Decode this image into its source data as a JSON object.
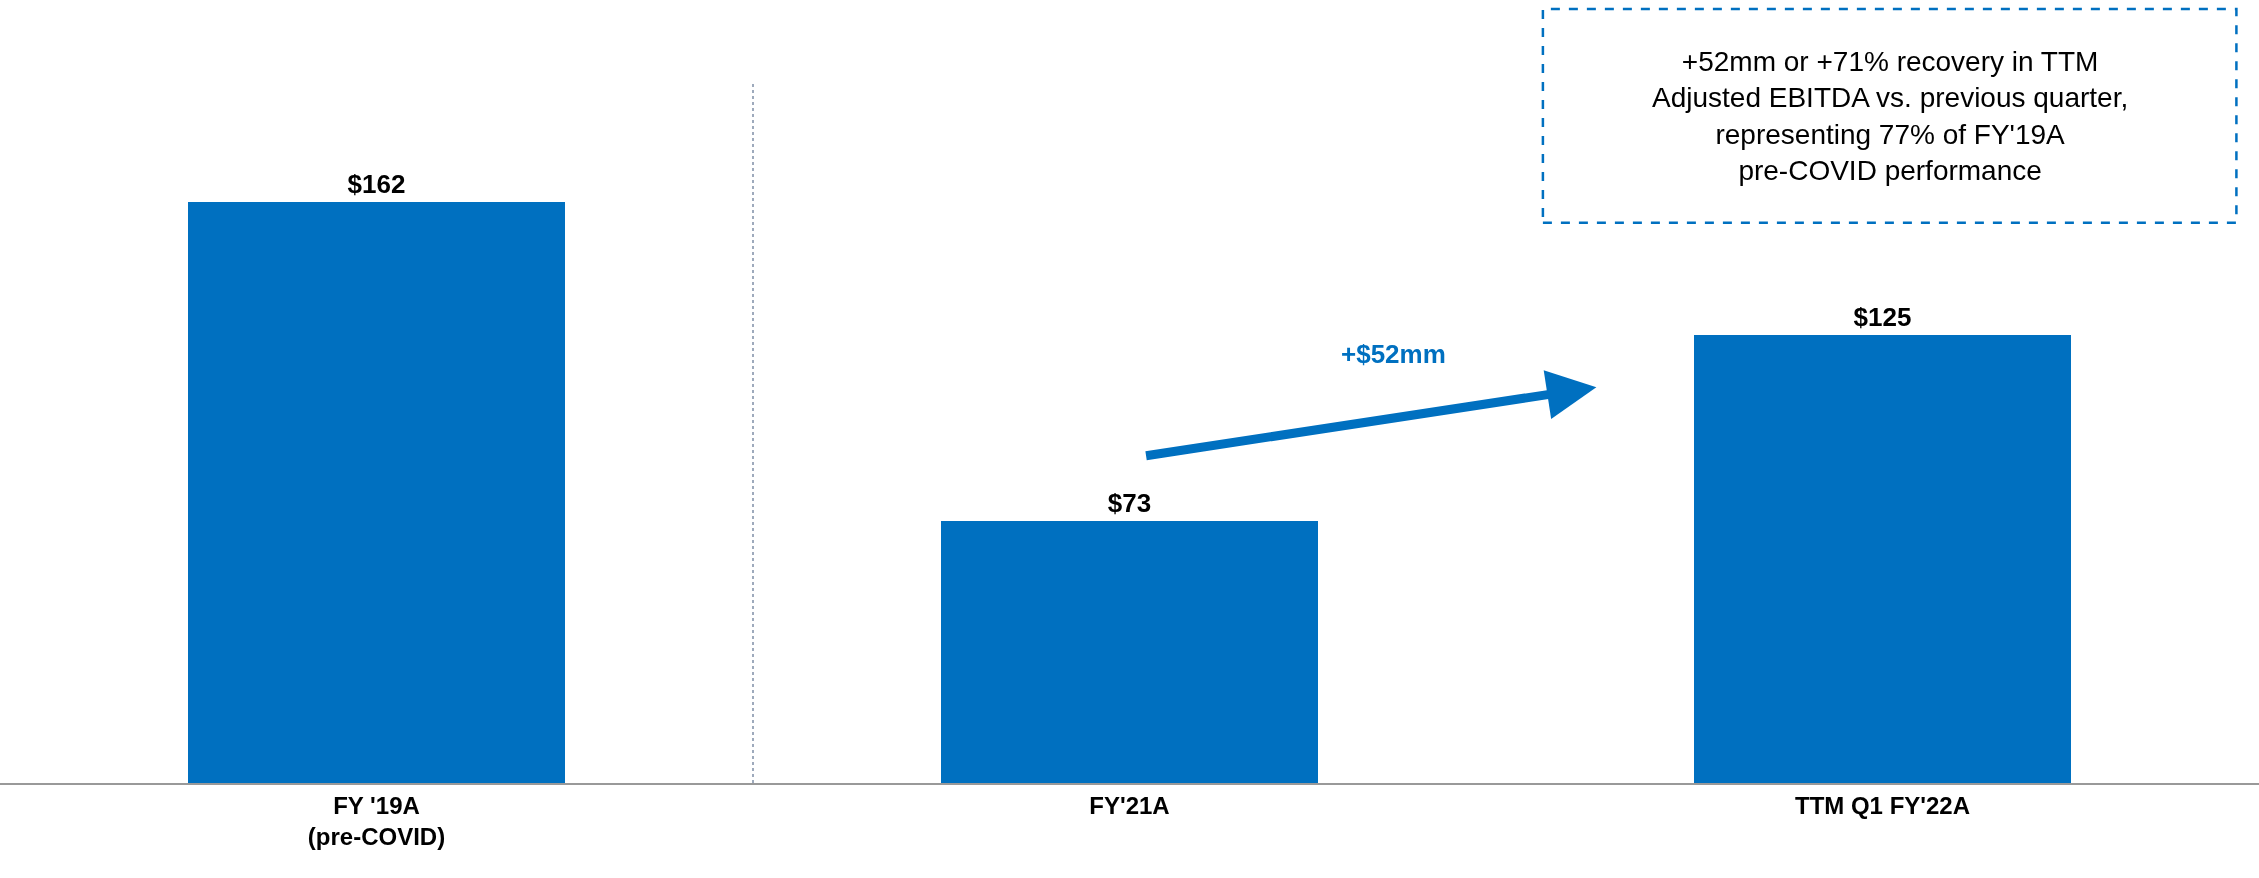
{
  "chart_data": {
    "type": "bar",
    "categories": [
      "FY '19A\n(pre-COVID)",
      "FY'21A",
      "TTM Q1 FY'22A"
    ],
    "values": [
      162,
      73,
      125
    ],
    "value_labels": [
      "$162",
      "$73",
      "$125"
    ],
    "color": "#0070c0",
    "legend": false,
    "tick_labels": "x",
    "annotations": [
      "+$52mm",
      "+52mm or +71% recovery in TTM\nAdjusted EBITDA vs. previous quarter,\nrepresenting 77% of FY'19A\npre-COVID performance"
    ]
  }
}
